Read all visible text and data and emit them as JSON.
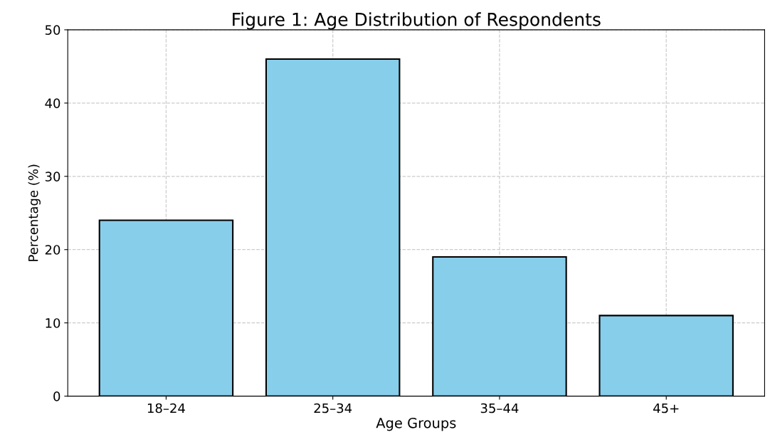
{
  "chart_data": {
    "type": "bar",
    "title": "Figure 1: Age Distribution of Respondents",
    "xlabel": "Age Groups",
    "ylabel": "Percentage (%)",
    "categories": [
      "18–24",
      "25–34",
      "35–44",
      "45+"
    ],
    "values": [
      24,
      46,
      19,
      11
    ],
    "color": "#87ceeb",
    "ylim": [
      0,
      50
    ],
    "yticks": [
      0,
      10,
      20,
      30,
      40,
      50
    ],
    "grid": true
  }
}
